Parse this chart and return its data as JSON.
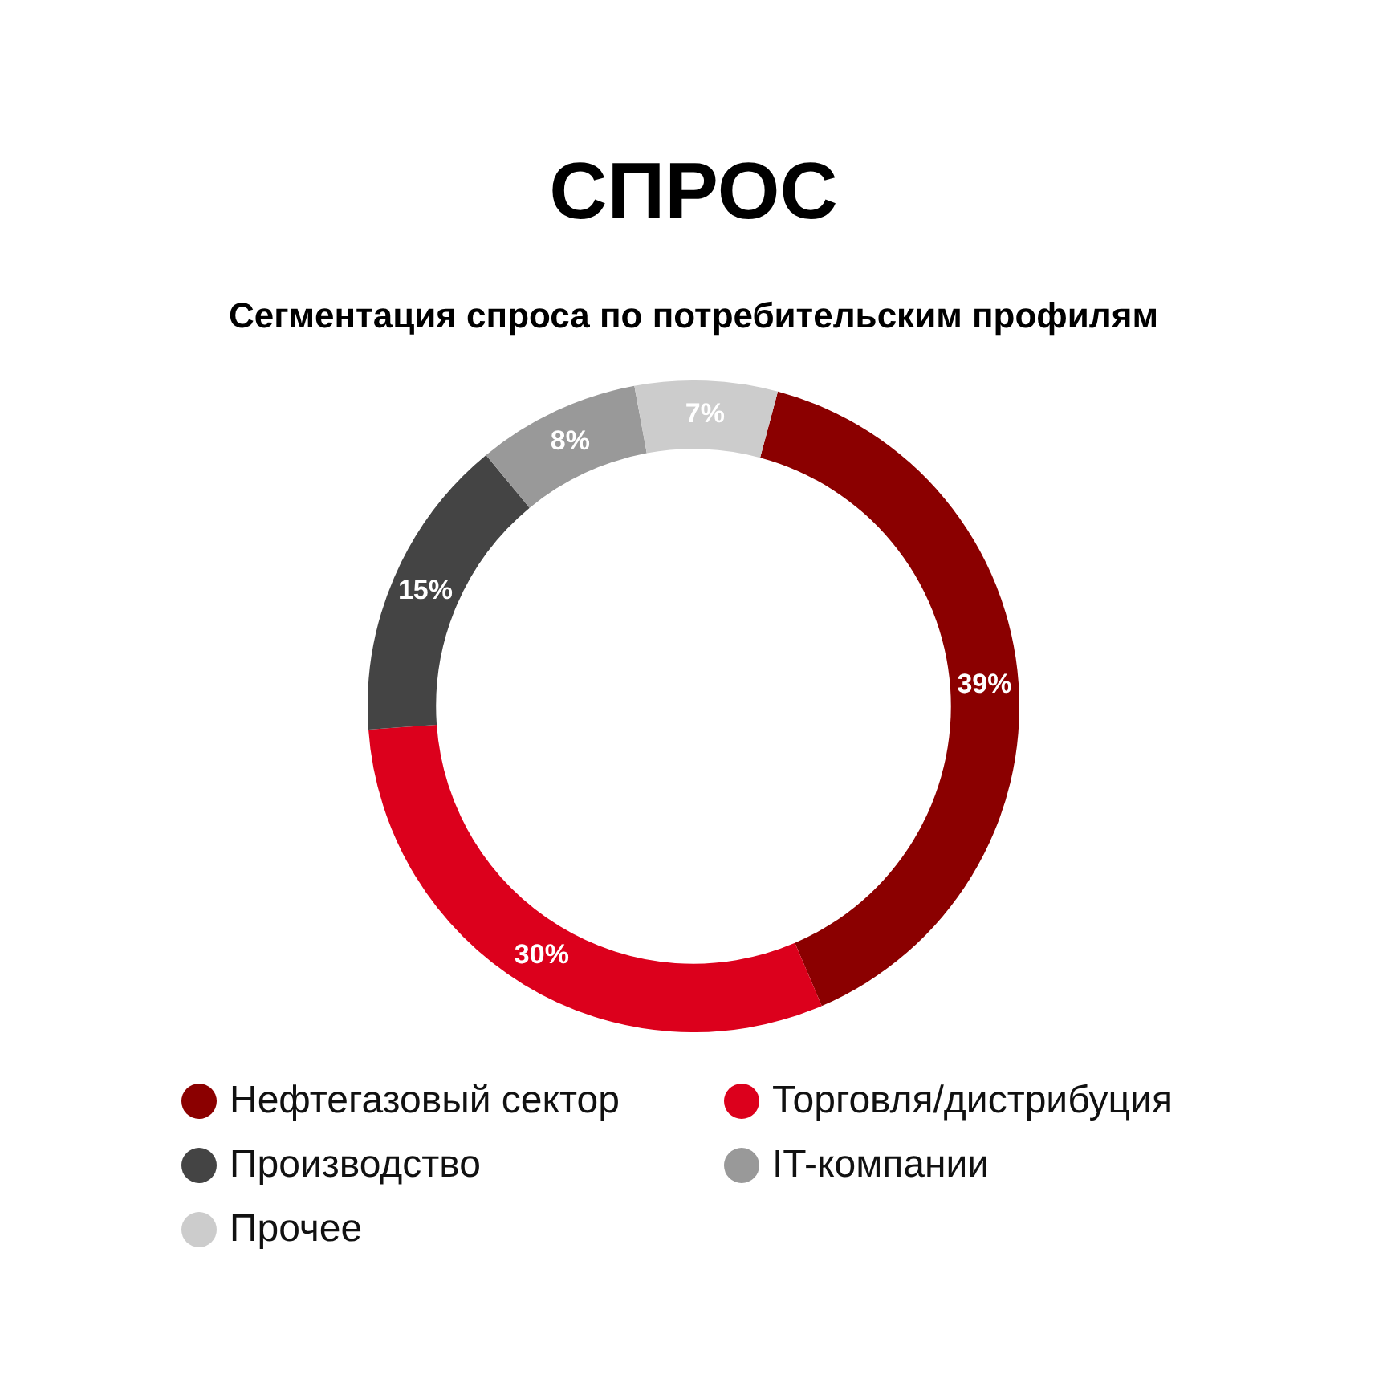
{
  "chart_data": {
    "type": "donut",
    "title": "СПРОС",
    "subtitle": "Сегментация спроса по потребительским профилям",
    "categories": [
      "Нефтегазовый сектор",
      "Торговля/дистрибуция",
      "Производство",
      "IT-компании",
      "Прочее"
    ],
    "values": [
      39,
      30,
      15,
      8,
      7
    ],
    "colors": [
      "#8b0000",
      "#dc001c",
      "#444444",
      "#999999",
      "#cccccc"
    ],
    "value_labels": [
      "39%",
      "30%",
      "15%",
      "8%",
      "7%"
    ],
    "legend": "bottom"
  }
}
